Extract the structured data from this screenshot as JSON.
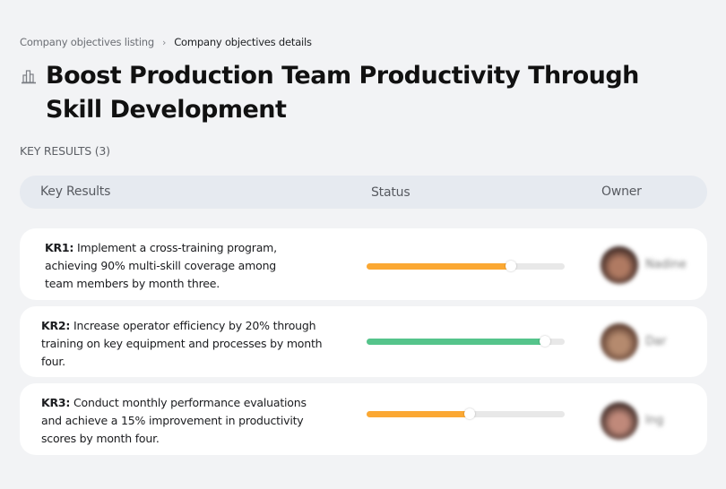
{
  "breadcrumb": {
    "items": [
      {
        "label": "Company objectives listing"
      },
      {
        "label": "Company objectives details"
      }
    ],
    "separator": "›"
  },
  "objective": {
    "icon": "building-chart-icon",
    "title": "Boost Production Team Productivity Through Skill Development"
  },
  "key_results_section": {
    "label": "KEY RESULTS (3)"
  },
  "table": {
    "columns": [
      "Key Results",
      "Status",
      "Owner"
    ]
  },
  "key_results": [
    {
      "id": "KR1:",
      "text": " Implement a cross-training program, achieving 90% multi-skill coverage among team members by month three.",
      "progress_percent": 73,
      "progress_color": "#fba833",
      "owner_name": "Nadine",
      "avatar_colors": [
        "#3a2622",
        "#b07a62"
      ]
    },
    {
      "id": "KR2:",
      "text": " Increase operator efficiency by 20% through training on key equipment and processes by month four.",
      "progress_percent": 90,
      "progress_color": "#55c48b",
      "owner_name": "Dar",
      "avatar_colors": [
        "#5a3b2e",
        "#b58a6e"
      ]
    },
    {
      "id": "KR3:",
      "text": " Conduct monthly performance evaluations and achieve a 15% improvement in productivity scores by month four.",
      "progress_percent": 52,
      "progress_color": "#fba833",
      "owner_name": "Ing",
      "avatar_colors": [
        "#3d2a26",
        "#c0897a"
      ]
    }
  ],
  "colors": {
    "background": "#f2f3f5",
    "header_bg": "#e6eaf0",
    "card_bg": "#ffffff",
    "track": "#e8e8e8",
    "in_progress": "#fba833",
    "on_track": "#55c48b"
  }
}
